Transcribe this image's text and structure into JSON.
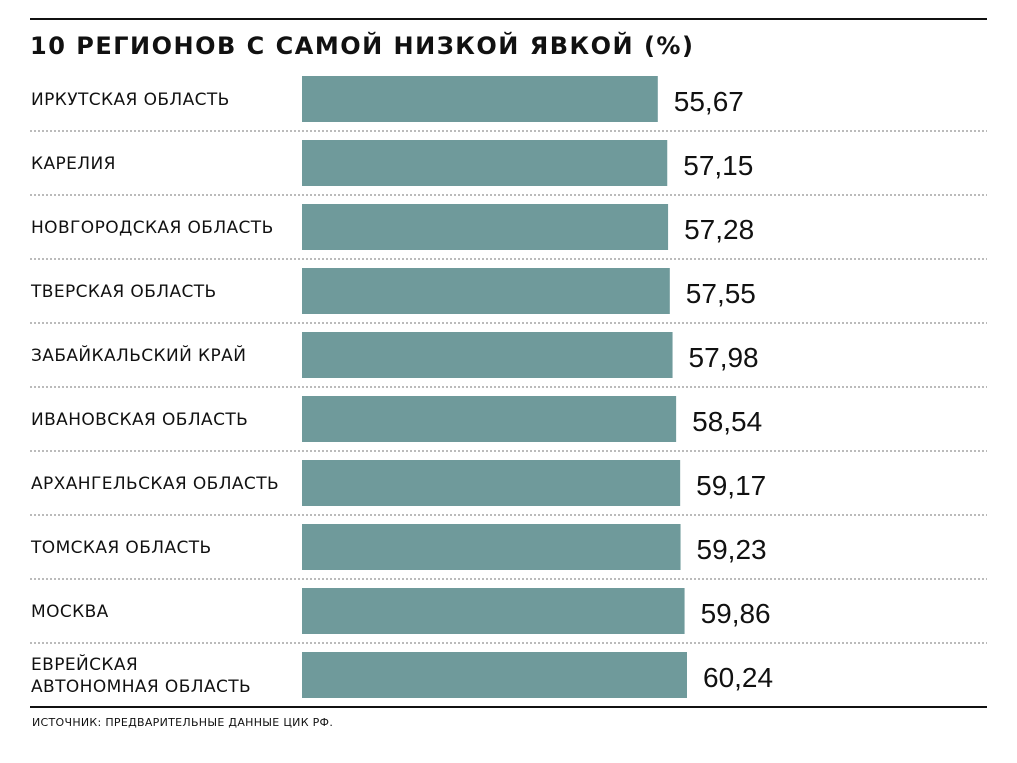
{
  "title": "10 РЕГИОНОВ С САМОЙ НИЗКОЙ ЯВКОЙ (%)",
  "source": "ИСТОЧНИК: ПРЕДВАРИТЕЛЬНЫЕ ДАННЫЕ ЦИК РФ.",
  "colors": {
    "bar": "#6f9a9b",
    "divider": "#777777",
    "rule": "#111111"
  },
  "chart_data": {
    "type": "bar",
    "orientation": "horizontal",
    "title": "10 РЕГИОНОВ С САМОЙ НИЗКОЙ ЯВКОЙ (%)",
    "categories": [
      [
        "ИРКУТСКАЯ ОБЛАСТЬ"
      ],
      [
        "КАРЕЛИЯ"
      ],
      [
        "НОВГОРОДСКАЯ ОБЛАСТЬ"
      ],
      [
        "ТВЕРСКАЯ ОБЛАСТЬ"
      ],
      [
        "ЗАБАЙКАЛЬСКИЙ КРАЙ"
      ],
      [
        "ИВАНОВСКАЯ ОБЛАСТЬ"
      ],
      [
        "АРХАНГЕЛЬСКАЯ ОБЛАСТЬ"
      ],
      [
        "ТОМСКАЯ ОБЛАСТЬ"
      ],
      [
        "МОСКВА"
      ],
      [
        "ЕВРЕЙСКАЯ",
        "АВТОНОМНАЯ ОБЛАСТЬ"
      ]
    ],
    "values": [
      55.67,
      57.15,
      57.28,
      57.55,
      57.98,
      58.54,
      59.17,
      59.23,
      59.86,
      60.24
    ],
    "value_labels": [
      "55,67",
      "57,15",
      "57,28",
      "57,55",
      "57,98",
      "58,54",
      "59,17",
      "59,23",
      "59,86",
      "60,24"
    ],
    "xlim": [
      0,
      60.24
    ],
    "grid": false,
    "legend": "none"
  }
}
